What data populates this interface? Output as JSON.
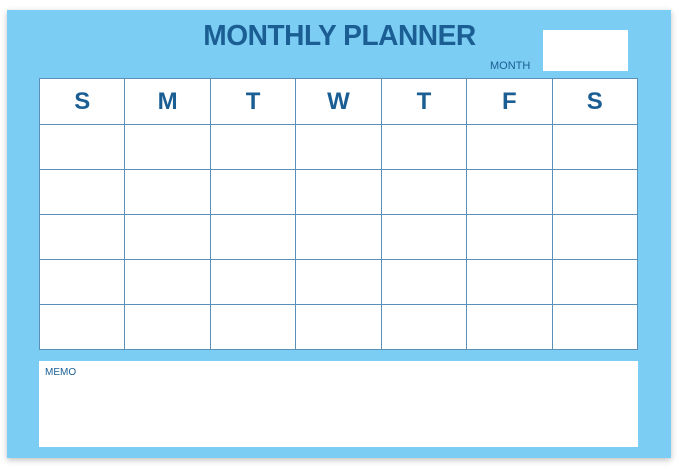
{
  "title": "MONTHLY PLANNER",
  "month_label": "MONTH",
  "month_value": "",
  "days": [
    "S",
    "M",
    "T",
    "W",
    "T",
    "F",
    "S"
  ],
  "week_rows": 5,
  "memo_label": "MEMO",
  "colors": {
    "background": "#7ccdf3",
    "text": "#1a5e93",
    "grid_line": "#5b8fb5"
  }
}
